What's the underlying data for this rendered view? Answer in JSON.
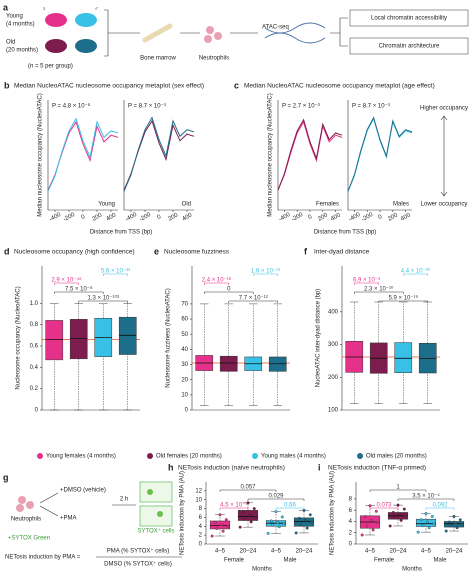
{
  "panel_a": {
    "label": "a",
    "young": "Young",
    "young_age": "(4 months)",
    "old": "Old",
    "old_age": "(20 months)",
    "female_symbol": "♀",
    "male_symbol": "♂",
    "n": "(n = 5 per group)",
    "bone_marrow": "Bone marrow",
    "neutrophils": "Neutrophils",
    "assay": "ATAC-seq",
    "out1": "Local chromatin accessibility",
    "out2": "Chromatin architecture"
  },
  "occupancy_scale": {
    "higher": "Higher occupancy",
    "lower": "Lower occupancy"
  },
  "legend": {
    "items": [
      {
        "name": "Young females (4 months)",
        "color": "#e6318a"
      },
      {
        "name": "Old females (20 months)",
        "color": "#7d1d4e"
      },
      {
        "name": "Young males (4 months)",
        "color": "#38c0e6"
      },
      {
        "name": "Old males (20 months)",
        "color": "#1d6e8a"
      }
    ]
  },
  "panel_g": {
    "label": "g",
    "neutrophils": "Neutrophils",
    "dmso": "+DMSO (vehicle)",
    "pma": "+PMA",
    "time": "2 h",
    "sytox_cells": "SYTOX⁺ cells",
    "sytox": "+SYTOX Green",
    "formula": "NETosis induction by PMA =",
    "numerator": "PMA (% SYTOX⁺ cells)",
    "denominator": "DMSO (% SYTOX⁺ cells)"
  },
  "chart_data": [
    {
      "type": "line",
      "label": "b",
      "title": "Median NucleoATAC nucleosome occupancy metaplot (sex effect)",
      "annotation": "P = 4.8 × 10⁻⁸",
      "subplot": "Young",
      "ylabel": "Median nucleosome occupancy (NucleoATAC)",
      "xlabel": "Distance from TSS (bp)",
      "x": [
        -500,
        -400,
        -300,
        -200,
        -100,
        0,
        100,
        200,
        300,
        400,
        500
      ],
      "xlim": [
        -500,
        500
      ],
      "xticks": [
        -400,
        -200,
        0,
        200,
        400
      ],
      "ylim": [
        0,
        1
      ],
      "series": [
        {
          "color": "#e6318a",
          "values": [
            0.18,
            0.32,
            0.52,
            0.7,
            0.8,
            0.6,
            0.45,
            0.76,
            0.62,
            0.68,
            0.66
          ]
        },
        {
          "color": "#38c0e6",
          "values": [
            0.17,
            0.31,
            0.53,
            0.72,
            0.83,
            0.63,
            0.48,
            0.8,
            0.66,
            0.72,
            0.7
          ]
        }
      ]
    },
    {
      "type": "line",
      "annotation": "P = 8.7 × 10⁻³",
      "subplot": "Old",
      "x": [
        -500,
        -400,
        -300,
        -200,
        -100,
        0,
        100,
        200,
        300,
        400,
        500
      ],
      "xlim": [
        -500,
        500
      ],
      "xticks": [
        -400,
        -200,
        0,
        200,
        400
      ],
      "ylim": [
        0,
        1
      ],
      "series": [
        {
          "color": "#7d1d4e",
          "values": [
            0.18,
            0.33,
            0.53,
            0.71,
            0.81,
            0.61,
            0.46,
            0.77,
            0.63,
            0.69,
            0.67
          ]
        },
        {
          "color": "#1d6e8a",
          "values": [
            0.17,
            0.32,
            0.54,
            0.73,
            0.84,
            0.64,
            0.49,
            0.81,
            0.67,
            0.73,
            0.71
          ]
        }
      ]
    },
    {
      "type": "line",
      "label": "c",
      "title": "Median NucleoATAC nucleosome occupancy metaplot (age effect)",
      "annotation": "P = 2.7 × 10⁻³",
      "subplot": "Females",
      "ylabel": "Median nucleosome occupancy (NucleoATAC)",
      "xlabel": "Distance from TSS (bp)",
      "x": [
        -500,
        -400,
        -300,
        -200,
        -100,
        0,
        100,
        200,
        300,
        400,
        500
      ],
      "xlim": [
        -500,
        500
      ],
      "xticks": [
        -400,
        -200,
        0,
        200,
        400
      ],
      "ylim": [
        0,
        1
      ],
      "series": [
        {
          "color": "#e6318a",
          "values": [
            0.18,
            0.32,
            0.52,
            0.7,
            0.8,
            0.6,
            0.45,
            0.76,
            0.62,
            0.68,
            0.66
          ]
        },
        {
          "color": "#7d1d4e",
          "values": [
            0.18,
            0.33,
            0.54,
            0.72,
            0.82,
            0.62,
            0.47,
            0.78,
            0.64,
            0.7,
            0.68
          ]
        }
      ]
    },
    {
      "type": "line",
      "annotation": "P = 8.7 × 10⁻³",
      "subplot": "Males",
      "x": [
        -500,
        -400,
        -300,
        -200,
        -100,
        0,
        100,
        200,
        300,
        400,
        500
      ],
      "xlim": [
        -500,
        500
      ],
      "xticks": [
        -400,
        -200,
        0,
        200,
        400
      ],
      "ylim": [
        0,
        1
      ],
      "series": [
        {
          "color": "#38c0e6",
          "values": [
            0.17,
            0.31,
            0.53,
            0.72,
            0.83,
            0.63,
            0.48,
            0.8,
            0.66,
            0.72,
            0.7
          ]
        },
        {
          "color": "#1d6e8a",
          "values": [
            0.17,
            0.32,
            0.54,
            0.73,
            0.84,
            0.64,
            0.49,
            0.81,
            0.67,
            0.73,
            0.71
          ]
        }
      ]
    },
    {
      "type": "box",
      "label": "d",
      "title": "Nucleosome occupancy (high confidence)",
      "ylabel": "Nucleosome occupancy (NucleoATAC)",
      "ylim": [
        0,
        1.35
      ],
      "yticks": [
        0,
        0.2,
        0.4,
        0.6,
        0.8,
        {
          "value": 1,
          "label": "1.0"
        }
      ],
      "boxes": [
        {
          "color": "#e6318a",
          "min": 0,
          "q1": 0.47,
          "median": 0.66,
          "q3": 0.84,
          "max": 1
        },
        {
          "color": "#7d1d4e",
          "min": 0,
          "q1": 0.48,
          "median": 0.67,
          "q3": 0.85,
          "max": 1
        },
        {
          "color": "#38c0e6",
          "min": 0,
          "q1": 0.5,
          "median": 0.68,
          "q3": 0.86,
          "max": 1
        },
        {
          "color": "#1d6e8a",
          "min": 0,
          "q1": 0.52,
          "median": 0.7,
          "q3": 0.87,
          "max": 1
        }
      ],
      "annotations": [
        {
          "text": "5.6 × 10⁻³³",
          "color": "#38c0e6"
        },
        {
          "text": "2.9 × 10⁻⁴⁸",
          "color": "#e6318a"
        },
        {
          "text": "7.5 × 10⁻⁸",
          "color": "#333333"
        },
        {
          "text": "1.3 × 10⁻¹⁰³",
          "color": "#333333"
        }
      ]
    },
    {
      "type": "box",
      "label": "e",
      "title": "Nucleosome fuzziness",
      "ylabel": "Nucleosome fuzziness (NucleoATAC)",
      "ylim": [
        0,
        95
      ],
      "yticks": [
        0,
        10,
        20,
        30,
        40,
        50,
        60,
        70
      ],
      "boxes": [
        {
          "color": "#e6318a",
          "min": 3,
          "q1": 26,
          "median": 31,
          "q3": 36,
          "max": 70
        },
        {
          "color": "#7d1d4e",
          "min": 3,
          "q1": 25.5,
          "median": 31,
          "q3": 35.5,
          "max": 70
        },
        {
          "color": "#38c0e6",
          "min": 3,
          "q1": 26,
          "median": 30.5,
          "q3": 35,
          "max": 70
        },
        {
          "color": "#1d6e8a",
          "min": 3,
          "q1": 25.5,
          "median": 30.5,
          "q3": 35,
          "max": 70
        }
      ],
      "annotations": [
        {
          "text": "1.6 × 10⁻¹³",
          "color": "#38c0e6"
        },
        {
          "text": "2.4 × 10⁻¹⁸",
          "color": "#e6318a"
        },
        {
          "text": "0",
          "color": "#333333"
        },
        {
          "text": "7.7 × 10⁻¹²",
          "color": "#333333"
        }
      ]
    },
    {
      "type": "box",
      "label": "f",
      "title": "Inter-dyad distance",
      "ylabel": "NucleoATAC inter-dyad distance (bp)",
      "ylim": [
        100,
        540
      ],
      "yticks": [
        100,
        200,
        300,
        400
      ],
      "boxes": [
        {
          "color": "#e6318a",
          "min": 120,
          "q1": 215,
          "median": 262,
          "q3": 310,
          "max": 430
        },
        {
          "color": "#7d1d4e",
          "min": 120,
          "q1": 212,
          "median": 258,
          "q3": 305,
          "max": 430
        },
        {
          "color": "#38c0e6",
          "min": 120,
          "q1": 214,
          "median": 258,
          "q3": 306,
          "max": 430
        },
        {
          "color": "#1d6e8a",
          "min": 120,
          "q1": 213,
          "median": 257,
          "q3": 304,
          "max": 430
        }
      ],
      "annotations": [
        {
          "text": "4.4 × 10⁻³⁰",
          "color": "#38c0e6"
        },
        {
          "text": "6.9 × 10⁻³",
          "color": "#e6318a"
        },
        {
          "text": "2.3 × 10⁻¹⁰",
          "color": "#333333"
        },
        {
          "text": "5.9 × 10⁻¹⁹",
          "color": "#333333"
        }
      ]
    },
    {
      "type": "box",
      "label": "h",
      "title": "NETosis induction (naive neutrophils)",
      "ylabel": "NETosis induction by PMA (AU)",
      "xlabel": "Months",
      "categories": [
        "4–5",
        "20–24",
        "4–5",
        "20–24"
      ],
      "groups": [
        "Female",
        "Male"
      ],
      "ylim": [
        0,
        14
      ],
      "yticks": [
        0,
        2,
        4,
        6,
        8,
        10,
        12
      ],
      "boxes": [
        {
          "color": "#e6318a",
          "min": 1.8,
          "q1": 3.4,
          "median": 4.2,
          "q3": 5.2,
          "max": 6.6,
          "points": [
            1.8,
            2.9,
            3.5,
            4.0,
            4.3,
            4.8,
            5.5,
            6.6
          ]
        },
        {
          "color": "#7d1d4e",
          "min": 3.8,
          "q1": 5.3,
          "median": 6.2,
          "q3": 7.6,
          "max": 9.3,
          "points": [
            3.8,
            5.0,
            5.6,
            6.0,
            6.5,
            7.2,
            8.0,
            9.3
          ]
        },
        {
          "color": "#38c0e6",
          "min": 2.4,
          "q1": 4.0,
          "median": 4.7,
          "q3": 5.3,
          "max": 7.3,
          "points": [
            2.4,
            3.9,
            4.3,
            4.6,
            4.9,
            5.2,
            6.1,
            7.3
          ]
        },
        {
          "color": "#1d6e8a",
          "min": 2.5,
          "q1": 4.0,
          "median": 5.1,
          "q3": 5.9,
          "max": 7.6,
          "points": [
            2.5,
            3.6,
            4.4,
            5.0,
            5.4,
            5.8,
            6.6,
            7.6
          ]
        }
      ],
      "annotations": [
        {
          "text": "0.057",
          "color": "#333333"
        },
        {
          "text": "0.029",
          "color": "#333333"
        },
        {
          "text": "4.5 × 10⁻⁵",
          "color": "#e6318a"
        },
        {
          "text": "0.66",
          "color": "#38c0e6"
        }
      ]
    },
    {
      "type": "box",
      "label": "i",
      "title": "NETosis induction (TNF-α primed)",
      "ylabel": "NETosis induction by PMA (AU)",
      "xlabel": "Months",
      "categories": [
        "4–5",
        "20–24",
        "4–5",
        "20–24"
      ],
      "groups": [
        "Female",
        "Male"
      ],
      "ylim": [
        0,
        11
      ],
      "yticks": [
        0,
        2,
        4,
        6,
        8
      ],
      "boxes": [
        {
          "color": "#e6318a",
          "min": 1.6,
          "q1": 2.8,
          "median": 3.9,
          "q3": 5.0,
          "max": 6.8,
          "points": [
            1.6,
            2.5,
            3.2,
            3.8,
            4.2,
            4.9,
            5.8,
            6.8
          ]
        },
        {
          "color": "#7d1d4e",
          "min": 3.2,
          "q1": 4.4,
          "median": 5.0,
          "q3": 5.6,
          "max": 6.9,
          "points": [
            3.2,
            4.2,
            4.7,
            5.0,
            5.3,
            5.6,
            6.2,
            6.9
          ]
        },
        {
          "color": "#38c0e6",
          "min": 2.1,
          "q1": 3.1,
          "median": 3.6,
          "q3": 4.4,
          "max": 5.4,
          "points": [
            2.1,
            2.9,
            3.3,
            3.6,
            3.9,
            4.3,
            4.9,
            5.4
          ]
        },
        {
          "color": "#1d6e8a",
          "min": 2.3,
          "q1": 3.0,
          "median": 3.6,
          "q3": 4.0,
          "max": 4.9,
          "points": [
            2.3,
            2.9,
            3.3,
            3.5,
            3.7,
            3.9,
            4.3,
            4.9
          ]
        }
      ],
      "annotations": [
        {
          "text": "1",
          "color": "#333333"
        },
        {
          "text": "3.5 × 10⁻⁴",
          "color": "#333333"
        },
        {
          "text": "0.073",
          "color": "#e6318a"
        },
        {
          "text": "0.092",
          "color": "#38c0e6"
        }
      ]
    }
  ]
}
